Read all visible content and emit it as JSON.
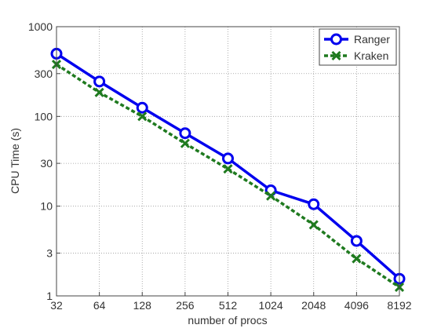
{
  "chart_data": {
    "type": "line",
    "xlabel": "number of procs",
    "ylabel": "CPU Time (s)",
    "x": [
      32,
      64,
      128,
      256,
      512,
      1024,
      2048,
      4096,
      8192
    ],
    "x_tick_labels": [
      "32",
      "64",
      "128",
      "256",
      "512",
      "1024",
      "2048",
      "4096",
      "8192"
    ],
    "y_scale": "log",
    "ylim": [
      1,
      1000
    ],
    "y_ticks": [
      1,
      3,
      10,
      30,
      100,
      300,
      1000
    ],
    "y_tick_labels": [
      "1",
      "3",
      "10",
      "30",
      "100",
      "300",
      "1000"
    ],
    "grid": true,
    "legend_position": "top-right",
    "series": [
      {
        "name": "Ranger",
        "color": "#0000ee",
        "marker": "circle",
        "line_style": "solid",
        "values": [
          500,
          245,
          125,
          65,
          34,
          15,
          10.5,
          4.1,
          1.55
        ]
      },
      {
        "name": "Kraken",
        "color": "#1f7a1f",
        "marker": "x",
        "line_style": "dashed",
        "values": [
          380,
          185,
          100,
          50,
          26,
          13,
          6.2,
          2.6,
          1.25
        ]
      }
    ]
  }
}
